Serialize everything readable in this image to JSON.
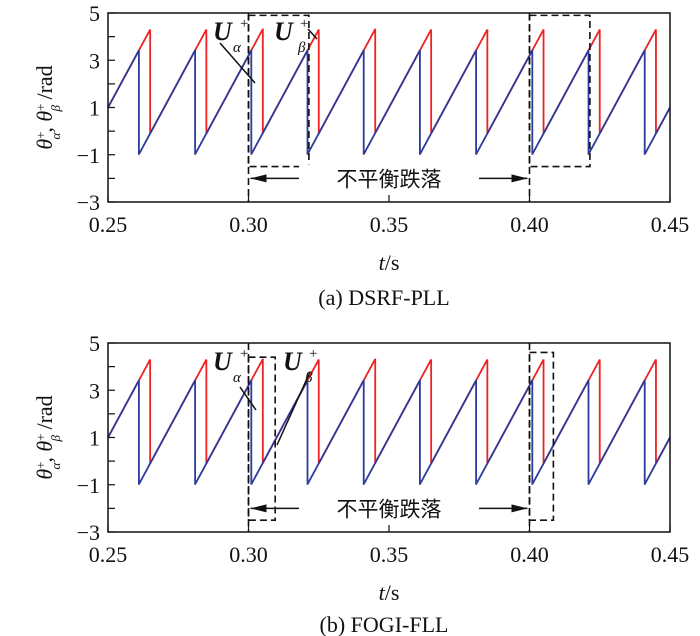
{
  "chart_data": [
    {
      "type": "line",
      "caption": "(a) DSRF-PLL",
      "xlabel_italic": "t",
      "xlabel_unit": "/s",
      "ylabel": "θα+, θβ+ /rad",
      "xlim": [
        0.25,
        0.45
      ],
      "ylim": [
        -3,
        5
      ],
      "xticks": [
        "0.25",
        "0.30",
        "0.35",
        "0.40",
        "0.45"
      ],
      "yticks": [
        "5",
        "3",
        "1",
        "−1",
        "−3"
      ],
      "ytick_values": [
        5,
        3,
        1,
        -1,
        -3
      ],
      "xtick_values": [
        0.25,
        0.3,
        0.35,
        0.4,
        0.45
      ],
      "grid": false,
      "series": [
        {
          "name": "U_alpha+",
          "color": "#ee2222",
          "wrap_low": -0.1,
          "wrap_high": 4.3,
          "value_at_start": 1.0,
          "slope": 220
        },
        {
          "name": "U_beta+",
          "color": "#2b3a9b",
          "wrap_low": -1.0,
          "wrap_high": 3.4,
          "value_at_start": 1.0,
          "slope": 220
        }
      ],
      "annotations": {
        "u_alpha_label": "U",
        "u_alpha_sub": "α",
        "u_beta_label": "U",
        "u_beta_sub": "β",
        "sup": "+",
        "event_label": "不平衡跌落",
        "event_start": 0.3,
        "event_end": 0.4,
        "box1": [
          0.3,
          0.3215
        ],
        "box2": [
          0.4,
          0.4215
        ]
      }
    },
    {
      "type": "line",
      "caption": "(b) FOGI-FLL",
      "xlabel_italic": "t",
      "xlabel_unit": "/s",
      "ylabel": "θα+, θβ+ /rad",
      "xlim": [
        0.25,
        0.45
      ],
      "ylim": [
        -3,
        5
      ],
      "xticks": [
        "0.25",
        "0.30",
        "0.35",
        "0.40",
        "0.45"
      ],
      "yticks": [
        "5",
        "3",
        "1",
        "−1",
        "−3"
      ],
      "ytick_values": [
        5,
        3,
        1,
        -1,
        -3
      ],
      "xtick_values": [
        0.25,
        0.3,
        0.35,
        0.4,
        0.45
      ],
      "grid": false,
      "series": [
        {
          "name": "U_alpha+",
          "color": "#ee2222",
          "wrap_low": -0.1,
          "wrap_high": 4.3,
          "value_at_start": 1.0,
          "slope": 220
        },
        {
          "name": "U_beta+",
          "color": "#2b3a9b",
          "wrap_low": -1.0,
          "wrap_high": 3.4,
          "value_at_start": 1.0,
          "slope": 220
        }
      ],
      "annotations": {
        "u_alpha_label": "U",
        "u_alpha_sub": "α",
        "u_beta_label": "U",
        "u_beta_sub": "β",
        "sup": "+",
        "event_label": "不平衡跌落",
        "event_start": 0.3,
        "event_end": 0.4,
        "box1": [
          0.3,
          0.3095
        ],
        "box2": [
          0.4,
          0.4085
        ]
      }
    }
  ]
}
